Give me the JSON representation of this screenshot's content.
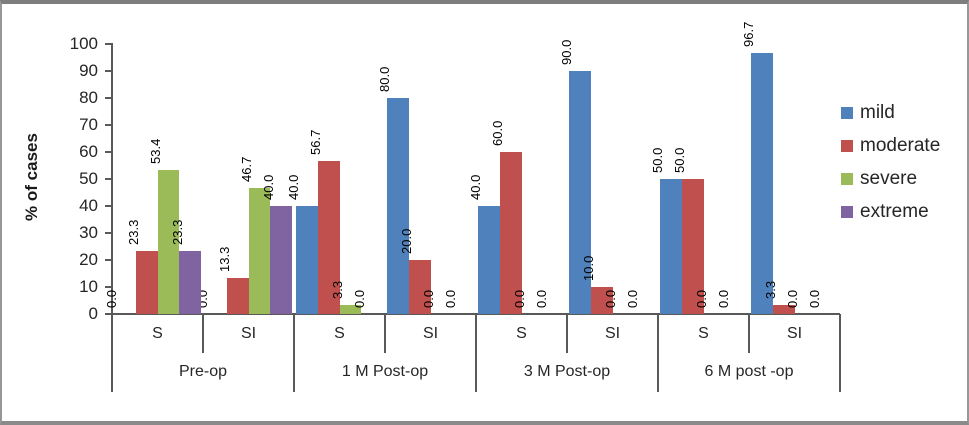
{
  "chart_data": {
    "type": "bar",
    "title": "",
    "ylabel": "% of cases",
    "ylim": [
      0,
      100
    ],
    "ytick_step": 10,
    "ytick_labels": [
      "0",
      "10",
      "20",
      "30",
      "40",
      "50",
      "60",
      "70",
      "80",
      "90",
      "100"
    ],
    "grid": false,
    "legend_position": "right",
    "data_label_rotation": 90,
    "x_axis": {
      "periods": [
        {
          "label": "Pre-op",
          "subs": [
            "S",
            "SI"
          ]
        },
        {
          "label": "1 M Post-op",
          "subs": [
            "S",
            "SI"
          ]
        },
        {
          "label": "3 M Post-op",
          "subs": [
            "S",
            "SI"
          ]
        },
        {
          "label": "6 M post -op",
          "subs": [
            "S",
            "SI"
          ]
        }
      ]
    },
    "categories": [
      "Pre-op S",
      "Pre-op SI",
      "1 M Post-op S",
      "1 M Post-op SI",
      "3 M Post-op S",
      "3 M Post-op SI",
      "6 M post -op S",
      "6 M post -op SI"
    ],
    "series": [
      {
        "name": "mild",
        "color": "#4F81BD",
        "values": [
          0.0,
          0.0,
          40.0,
          80.0,
          40.0,
          90.0,
          50.0,
          96.7
        ]
      },
      {
        "name": "moderate",
        "color": "#C0504D",
        "values": [
          23.3,
          13.3,
          56.7,
          20.0,
          60.0,
          10.0,
          50.0,
          3.3
        ]
      },
      {
        "name": "severe",
        "color": "#9BBB59",
        "values": [
          53.4,
          46.7,
          3.3,
          0.0,
          0.0,
          0.0,
          0.0,
          0.0
        ]
      },
      {
        "name": "extreme",
        "color": "#8064A2",
        "values": [
          23.3,
          40.0,
          0.0,
          0.0,
          0.0,
          0.0,
          0.0,
          0.0
        ]
      }
    ],
    "axis_color": "#595959"
  }
}
